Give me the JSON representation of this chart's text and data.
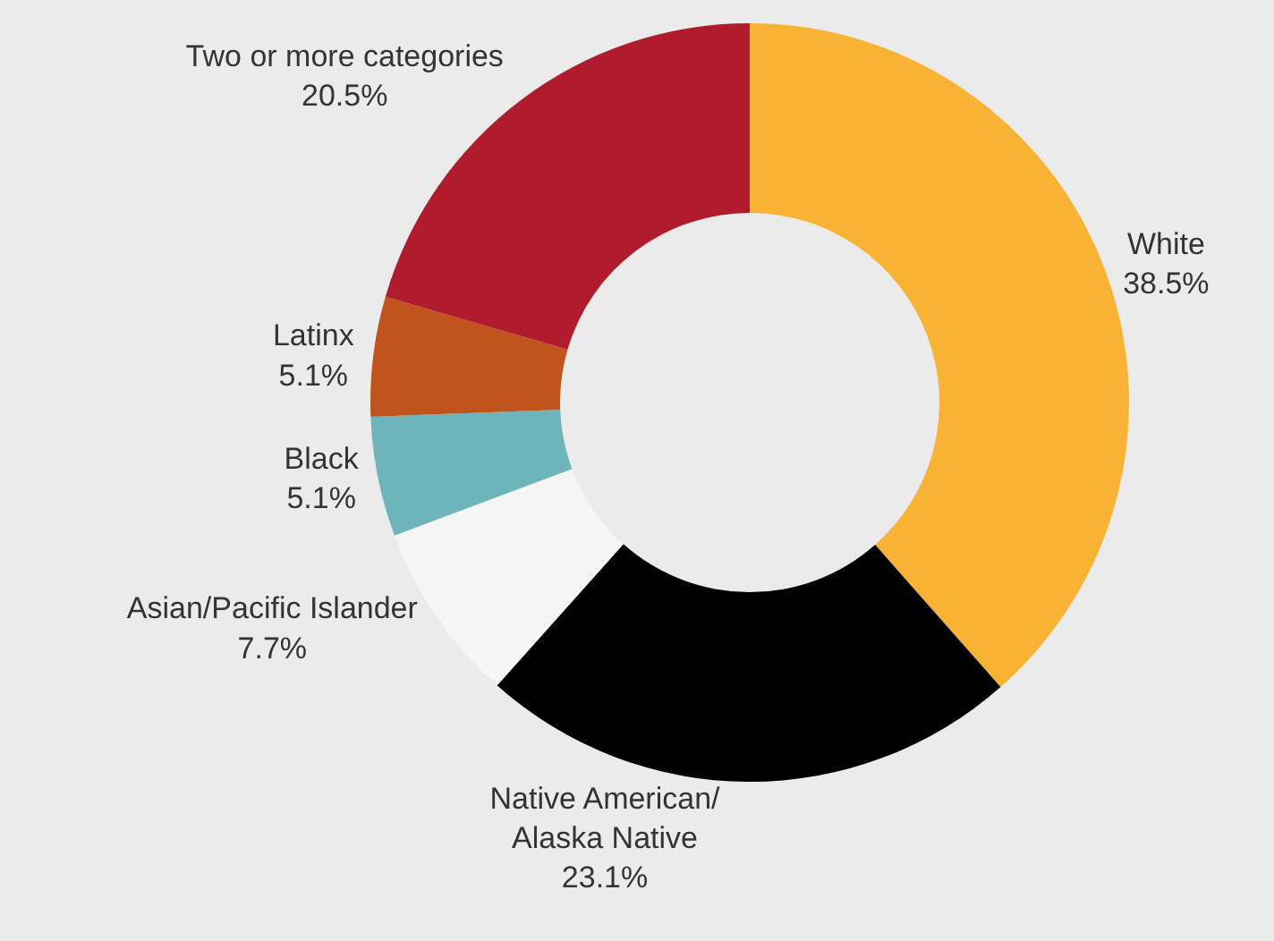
{
  "chart_data": {
    "type": "donut",
    "categories": [
      "White",
      "Native American/\nAlaska Native",
      "Asian/Pacific Islander",
      "Black",
      "Latinx",
      "Two or more categories"
    ],
    "values": [
      38.5,
      23.1,
      7.7,
      5.1,
      5.1,
      20.5
    ],
    "value_labels": [
      "38.5%",
      "23.1%",
      "7.7%",
      "5.1%",
      "5.1%",
      "20.5%"
    ],
    "colors": [
      "#f8b334",
      "#000000",
      "#f5f5f5",
      "#6db5bb",
      "#c0541c",
      "#b01b2e"
    ],
    "legend": false
  }
}
